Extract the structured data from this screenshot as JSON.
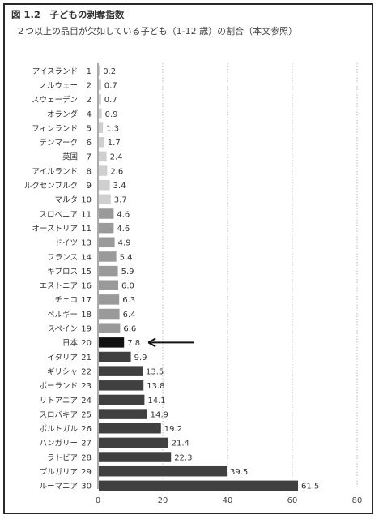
{
  "figure": {
    "title": "図 1.2　子どもの剥奪指数",
    "subtitle": "２つ以上の品目が欠如している子ども（1-12 歳）の割合（本文参照）"
  },
  "chart_data": {
    "type": "bar",
    "orientation": "horizontal",
    "title": "図 1.2　子どもの剥奪指数",
    "subtitle": "２つ以上の品目が欠如している子ども（1-12 歳）の割合（本文参照）",
    "xlim": [
      0,
      80
    ],
    "x_ticks": [
      "0",
      "20",
      "40",
      "60",
      "80"
    ],
    "grid": "vertical dotted",
    "highlight": "日本",
    "categories": [
      "アイスランド",
      "ノルウェー",
      "スウェーデン",
      "オランダ",
      "フィンランド",
      "デンマーク",
      "英国",
      "アイルランド",
      "ルクセンブルク",
      "マルタ",
      "スロベニア",
      "オーストリア",
      "ドイツ",
      "フランス",
      "キプロス",
      "エストニア",
      "チェコ",
      "ベルギー",
      "スペイン",
      "日本",
      "イタリア",
      "ギリシャ",
      "ポーランド",
      "リトアニア",
      "スロバキア",
      "ポルトガル",
      "ハンガリー",
      "ラトビア",
      "ブルガリア",
      "ルーマニア"
    ],
    "ranks": [
      "1",
      "2",
      "2",
      "4",
      "5",
      "6",
      "7",
      "8",
      "9",
      "10",
      "11",
      "11",
      "13",
      "14",
      "15",
      "16",
      "17",
      "18",
      "19",
      "20",
      "21",
      "22",
      "23",
      "24",
      "25",
      "26",
      "27",
      "28",
      "29",
      "30"
    ],
    "values": [
      0.2,
      0.7,
      0.7,
      0.9,
      1.3,
      1.7,
      2.4,
      2.6,
      3.4,
      3.7,
      4.6,
      4.6,
      4.9,
      5.4,
      5.9,
      6.0,
      6.3,
      6.4,
      6.6,
      7.8,
      9.9,
      13.5,
      13.8,
      14.1,
      14.9,
      19.2,
      21.4,
      22.3,
      39.5,
      61.5
    ],
    "value_labels": [
      "0.2",
      "0.7",
      "0.7",
      "0.9",
      "1.3",
      "1.7",
      "2.4",
      "2.6",
      "3.4",
      "3.7",
      "4.6",
      "4.6",
      "4.9",
      "5.4",
      "5.9",
      "6.0",
      "6.3",
      "6.4",
      "6.6",
      "7.8",
      "9.9",
      "13.5",
      "13.8",
      "14.1",
      "14.9",
      "19.2",
      "21.4",
      "22.3",
      "39.5",
      "61.5"
    ],
    "colors": {
      "light": "#cfcfcf",
      "mid": "#9a9a9a",
      "dark": "#404040",
      "japan": "#111111",
      "grid": "#9a9a9a",
      "axis": "#555555"
    }
  }
}
